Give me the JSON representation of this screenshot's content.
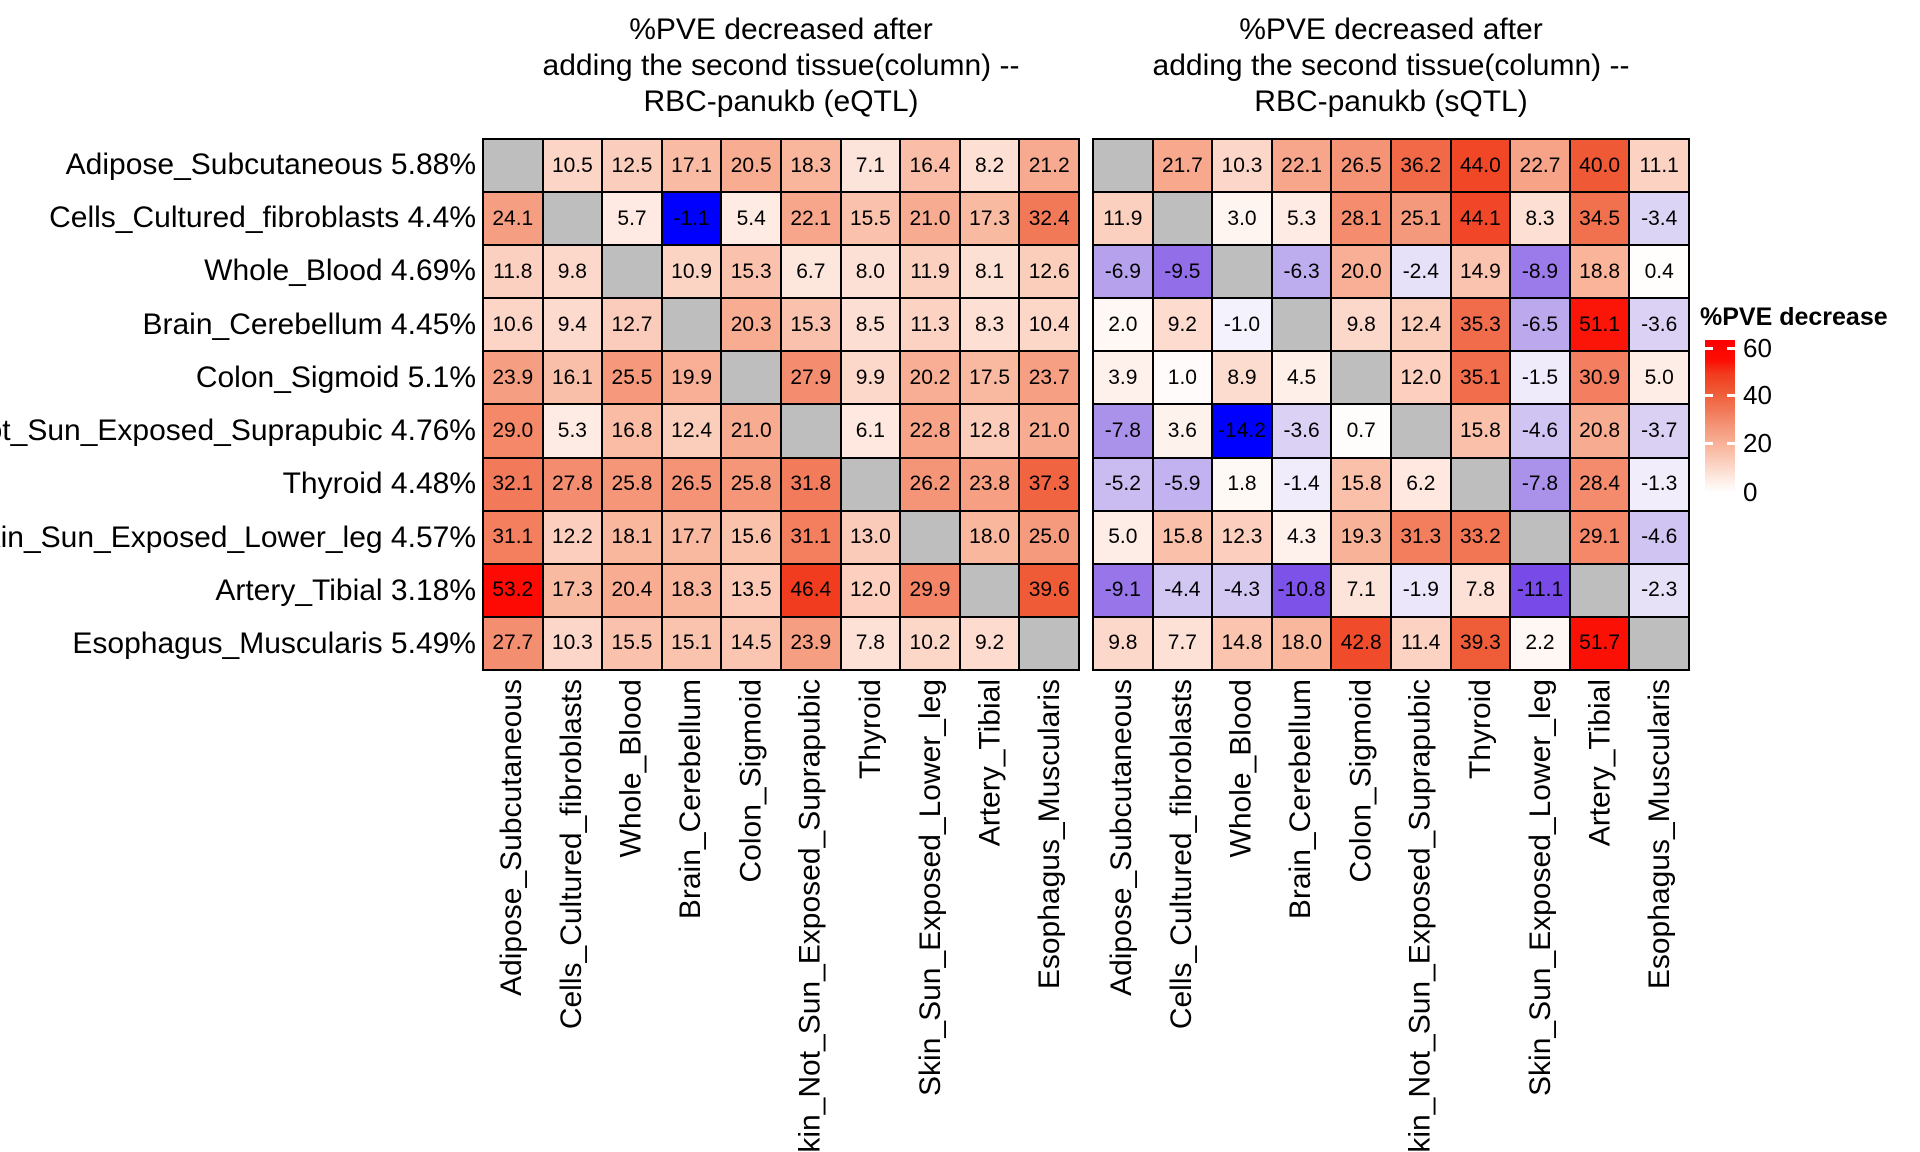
{
  "figure": {
    "legend": {
      "title": "%PVE decrease",
      "tick_labels": [
        "60",
        "40",
        "20",
        "0"
      ],
      "high_color": "#FF0000",
      "low_color": "#0000FF",
      "na_color": "#BEBEBE"
    }
  },
  "chart_data": {
    "type": "heatmap",
    "description": "Two 10x10 tissue-by-tissue heatmaps; cell = %PVE decreased after adding the second tissue (column); diagonal cells are NA (gray)",
    "row_labels": [
      {
        "tissue": "Adipose_Subcutaneous",
        "pve": "5.88%"
      },
      {
        "tissue": "Cells_Cultured_fibroblasts",
        "pve": "4.4%"
      },
      {
        "tissue": "Whole_Blood",
        "pve": "4.69%"
      },
      {
        "tissue": "Brain_Cerebellum",
        "pve": "4.45%"
      },
      {
        "tissue": "Colon_Sigmoid",
        "pve": "5.1%"
      },
      {
        "tissue": "Skin_Not_Sun_Exposed_Suprapubic",
        "pve": "4.76%"
      },
      {
        "tissue": "Thyroid",
        "pve": "4.48%"
      },
      {
        "tissue": "Skin_Sun_Exposed_Lower_leg",
        "pve": "4.57%"
      },
      {
        "tissue": "Artery_Tibial",
        "pve": "3.18%"
      },
      {
        "tissue": "Esophagus_Muscularis",
        "pve": "5.49%"
      }
    ],
    "col_labels": [
      "Adipose_Subcutaneous",
      "Cells_Cultured_fibroblasts",
      "Whole_Blood",
      "Brain_Cerebellum",
      "Colon_Sigmoid",
      "Skin_Not_Sun_Exposed_Suprapubic",
      "Thyroid",
      "Skin_Sun_Exposed_Lower_leg",
      "Artery_Tibial",
      "Esophagus_Muscularis"
    ],
    "panels": [
      {
        "qtl": "eQTL",
        "title": "%PVE decreased after\nadding the second tissue(column) --\nRBC-panukb (eQTL)",
        "values": [
          [
            null,
            10.5,
            12.5,
            17.1,
            20.5,
            18.3,
            7.1,
            16.4,
            8.2,
            21.2
          ],
          [
            24.1,
            null,
            5.7,
            -1.1,
            5.4,
            22.1,
            15.5,
            21.0,
            17.3,
            32.4
          ],
          [
            11.8,
            9.8,
            null,
            10.9,
            15.3,
            6.7,
            8.0,
            11.9,
            8.1,
            12.6
          ],
          [
            10.6,
            9.4,
            12.7,
            null,
            20.3,
            15.3,
            8.5,
            11.3,
            8.3,
            10.4
          ],
          [
            23.9,
            16.1,
            25.5,
            19.9,
            null,
            27.9,
            9.9,
            20.2,
            17.5,
            23.7
          ],
          [
            29.0,
            5.3,
            16.8,
            12.4,
            21.0,
            null,
            6.1,
            22.8,
            12.8,
            21.0
          ],
          [
            32.1,
            27.8,
            25.8,
            26.5,
            25.8,
            31.8,
            null,
            26.2,
            23.8,
            37.3
          ],
          [
            31.1,
            12.2,
            18.1,
            17.7,
            15.6,
            31.1,
            13.0,
            null,
            18.0,
            25.0
          ],
          [
            53.2,
            17.3,
            20.4,
            18.3,
            13.5,
            46.4,
            12.0,
            29.9,
            null,
            39.6
          ],
          [
            27.7,
            10.3,
            15.5,
            15.1,
            14.5,
            23.9,
            7.8,
            10.2,
            9.2,
            null
          ]
        ]
      },
      {
        "qtl": "sQTL",
        "title": "%PVE decreased after\nadding the second tissue(column) --\nRBC-panukb (sQTL)",
        "values": [
          [
            null,
            21.7,
            10.3,
            22.1,
            26.5,
            36.2,
            44.0,
            22.7,
            40.0,
            11.1
          ],
          [
            11.9,
            null,
            3.0,
            5.3,
            28.1,
            25.1,
            44.1,
            8.3,
            34.5,
            -3.4
          ],
          [
            -6.9,
            -9.5,
            null,
            -6.3,
            20.0,
            -2.4,
            14.9,
            -8.9,
            18.8,
            0.4
          ],
          [
            2.0,
            9.2,
            -1.0,
            null,
            9.8,
            12.4,
            35.3,
            -6.5,
            51.1,
            -3.6
          ],
          [
            3.9,
            1.0,
            8.9,
            4.5,
            null,
            12.0,
            35.1,
            -1.5,
            30.9,
            5.0
          ],
          [
            -7.8,
            3.6,
            -14.2,
            -3.6,
            0.7,
            null,
            15.8,
            -4.6,
            20.8,
            -3.7
          ],
          [
            -5.2,
            -5.9,
            1.8,
            -1.4,
            15.8,
            6.2,
            null,
            -7.8,
            28.4,
            -1.3
          ],
          [
            5.0,
            15.8,
            12.3,
            4.3,
            19.3,
            31.3,
            33.2,
            null,
            29.1,
            -4.6
          ],
          [
            -9.1,
            -4.4,
            -4.3,
            -10.8,
            7.1,
            -1.9,
            7.8,
            -11.1,
            null,
            -2.3
          ],
          [
            9.8,
            7.7,
            14.8,
            18.0,
            42.8,
            11.4,
            39.3,
            2.2,
            51.7,
            null
          ]
        ]
      }
    ],
    "color_scale": {
      "positive_domain": [
        0,
        60
      ],
      "negative_rule": "negative values shaded white-to-blue relative to each panel minimum",
      "legend_ticks": [
        60,
        40,
        20,
        0
      ],
      "na_color": "#BEBEBE",
      "high_color": "#FF0000",
      "low_color": "#0000FF"
    }
  }
}
